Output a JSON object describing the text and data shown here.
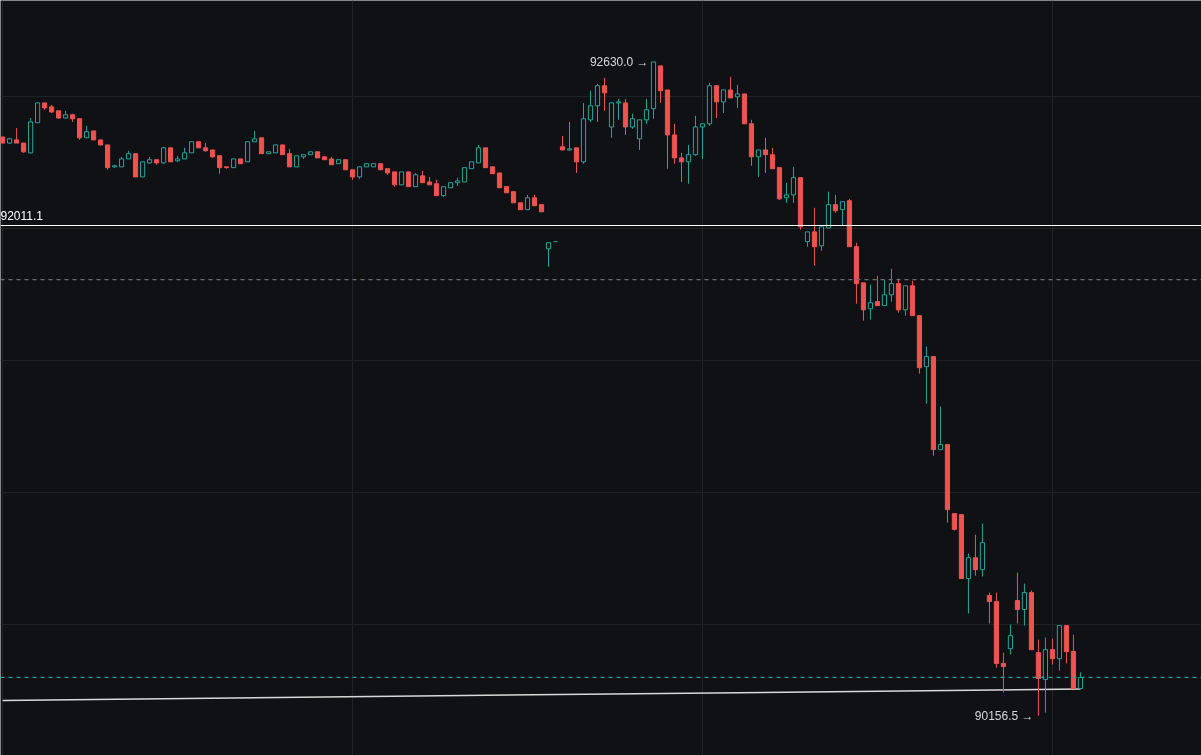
{
  "chart_data": {
    "type": "candlestick",
    "categories": [
      null,
      null,
      null,
      null,
      null,
      null,
      null,
      null,
      null,
      null,
      null,
      null,
      null,
      null,
      null,
      null,
      null,
      null,
      null,
      null,
      null,
      null,
      null,
      null,
      null,
      null,
      null,
      null,
      null,
      null,
      null,
      null,
      null,
      null,
      null,
      null,
      null,
      null,
      null,
      null,
      null,
      null,
      null,
      null,
      null,
      null,
      null,
      null,
      null,
      null,
      null,
      null,
      null,
      null,
      null,
      null,
      null,
      null,
      null,
      null,
      null,
      null,
      null,
      null,
      null,
      null,
      null,
      null,
      null,
      null,
      null,
      null,
      null,
      null,
      null,
      null,
      null,
      null,
      null,
      null,
      null,
      null,
      null,
      null,
      null,
      null,
      null,
      null,
      null,
      null,
      null,
      null,
      null,
      null,
      null,
      null,
      null,
      null,
      null,
      null,
      null,
      null,
      null,
      null,
      null,
      null,
      null,
      null,
      null,
      null,
      null,
      null,
      null,
      null,
      null,
      null,
      null,
      null,
      null,
      null,
      null,
      null,
      null,
      null,
      null,
      null,
      null,
      null,
      null,
      null,
      null,
      null,
      null,
      null,
      null,
      null,
      null,
      null,
      null,
      null,
      null,
      null,
      null,
      null,
      null,
      null,
      null,
      null,
      null,
      null,
      null,
      null,
      null,
      null,
      null
    ],
    "ohlc": [
      [
        92346,
        92346,
        92323,
        92323
      ],
      [
        92323,
        92343,
        92320,
        92339
      ],
      [
        92335,
        92380,
        92323,
        92323
      ],
      [
        92323,
        92323,
        92286,
        92290
      ],
      [
        92286,
        92418,
        92283,
        92403
      ],
      [
        92400,
        92475,
        92400,
        92475
      ],
      [
        92475,
        92475,
        92449,
        92456
      ],
      [
        92460,
        92468,
        92437,
        92441
      ],
      [
        92445,
        92445,
        92415,
        92418
      ],
      [
        92418,
        92445,
        92415,
        92430
      ],
      [
        92430,
        92434,
        92403,
        92415
      ],
      [
        92415,
        92418,
        92335,
        92343
      ],
      [
        92343,
        92388,
        92343,
        92366
      ],
      [
        92369,
        92369,
        92335,
        92335
      ],
      [
        92335,
        92335,
        92313,
        92316
      ],
      [
        92316,
        92316,
        92222,
        92230
      ],
      [
        92233,
        92241,
        92230,
        92237
      ],
      [
        92233,
        92271,
        92233,
        92263
      ],
      [
        92263,
        92294,
        92263,
        92283
      ],
      [
        92283,
        92283,
        92195,
        92195
      ],
      [
        92195,
        92252,
        92195,
        92252
      ],
      [
        92248,
        92271,
        92245,
        92260
      ],
      [
        92260,
        92260,
        92241,
        92248
      ],
      [
        92248,
        92309,
        92245,
        92305
      ],
      [
        92305,
        92305,
        92252,
        92252
      ],
      [
        92256,
        92275,
        92252,
        92263
      ],
      [
        92263,
        92305,
        92263,
        92286
      ],
      [
        92286,
        92328,
        92286,
        92328
      ],
      [
        92328,
        92331,
        92305,
        92305
      ],
      [
        92305,
        92323,
        92290,
        92294
      ],
      [
        92297,
        92297,
        92267,
        92271
      ],
      [
        92275,
        92275,
        92207,
        92230
      ],
      [
        92233,
        92233,
        92226,
        92230
      ],
      [
        92230,
        92263,
        92230,
        92263
      ],
      [
        92263,
        92263,
        92245,
        92245
      ],
      [
        92252,
        92328,
        92252,
        92328
      ],
      [
        92328,
        92369,
        92328,
        92339
      ],
      [
        92343,
        92343,
        92283,
        92283
      ],
      [
        92283,
        92290,
        92283,
        92290
      ],
      [
        92286,
        92316,
        92286,
        92316
      ],
      [
        92316,
        92316,
        92279,
        92279
      ],
      [
        92283,
        92301,
        92233,
        92233
      ],
      [
        92233,
        92275,
        92233,
        92275
      ],
      [
        92271,
        92279,
        92263,
        92279
      ],
      [
        92279,
        92290,
        92279,
        92290
      ],
      [
        92290,
        92290,
        92267,
        92267
      ],
      [
        92271,
        92271,
        92260,
        92260
      ],
      [
        92263,
        92271,
        92241,
        92241
      ],
      [
        92245,
        92260,
        92245,
        92260
      ],
      [
        92260,
        92260,
        92222,
        92222
      ],
      [
        92222,
        92222,
        92184,
        92195
      ],
      [
        92195,
        92233,
        92188,
        92233
      ],
      [
        92233,
        92248,
        92233,
        92245
      ],
      [
        92233,
        92245,
        92233,
        92245
      ],
      [
        92245,
        92245,
        92222,
        92222
      ],
      [
        92226,
        92226,
        92203,
        92210
      ],
      [
        92214,
        92214,
        92158,
        92165
      ],
      [
        92165,
        92214,
        92165,
        92214
      ],
      [
        92214,
        92214,
        92158,
        92158
      ],
      [
        92158,
        92210,
        92158,
        92203
      ],
      [
        92199,
        92218,
        92173,
        92173
      ],
      [
        92176,
        92195,
        92165,
        92165
      ],
      [
        92169,
        92184,
        92124,
        92124
      ],
      [
        92124,
        92158,
        92120,
        92158
      ],
      [
        92154,
        92173,
        92154,
        92173
      ],
      [
        92173,
        92192,
        92161,
        92180
      ],
      [
        92176,
        92230,
        92176,
        92230
      ],
      [
        92226,
        92252,
        92226,
        92252
      ],
      [
        92248,
        92316,
        92248,
        92305
      ],
      [
        92305,
        92305,
        92230,
        92230
      ],
      [
        92233,
        92233,
        92207,
        92207
      ],
      [
        92210,
        92210,
        92154,
        92154
      ],
      [
        92158,
        92158,
        92135,
        92135
      ],
      [
        92139,
        92139,
        92097,
        92097
      ],
      [
        92097,
        92097,
        92071,
        92071
      ],
      [
        92071,
        92127,
        92071,
        92116
      ],
      [
        92116,
        92127,
        92086,
        92086
      ],
      [
        92090,
        92090,
        92063,
        92063
      ],
      [
        91923,
        91946,
        91855,
        91946
      ],
      [
        91950,
        91950,
        91950,
        91950
      ],
      [
        92309,
        92350,
        92297,
        92297
      ],
      [
        92297,
        92403,
        92294,
        92301
      ],
      [
        92305,
        92305,
        92210,
        92252
      ],
      [
        92252,
        92475,
        92245,
        92415
      ],
      [
        92411,
        92521,
        92403,
        92464
      ],
      [
        92464,
        92547,
        92403,
        92540
      ],
      [
        92540,
        92570,
        92445,
        92513
      ],
      [
        92384,
        92475,
        92343,
        92475
      ],
      [
        92475,
        92490,
        92411,
        92479
      ],
      [
        92475,
        92490,
        92354,
        92384
      ],
      [
        92384,
        92434,
        92377,
        92415
      ],
      [
        92339,
        92411,
        92297,
        92411
      ],
      [
        92411,
        92490,
        92396,
        92449
      ],
      [
        92453,
        92630,
        92415,
        92630
      ],
      [
        92615,
        92615,
        92475,
        92521
      ],
      [
        92524,
        92524,
        92226,
        92354
      ],
      [
        92354,
        92396,
        92245,
        92267
      ],
      [
        92267,
        92286,
        92176,
        92252
      ],
      [
        92252,
        92316,
        92169,
        92279
      ],
      [
        92279,
        92426,
        92275,
        92384
      ],
      [
        92384,
        92396,
        92263,
        92396
      ],
      [
        92396,
        92551,
        92388,
        92540
      ],
      [
        92540,
        92540,
        92418,
        92479
      ],
      [
        92479,
        92524,
        92437,
        92524
      ],
      [
        92524,
        92574,
        92494,
        92494
      ],
      [
        92498,
        92543,
        92456,
        92509
      ],
      [
        92509,
        92509,
        92396,
        92396
      ],
      [
        92396,
        92411,
        92237,
        92271
      ],
      [
        92271,
        92297,
        92195,
        92297
      ],
      [
        92297,
        92343,
        92210,
        92279
      ],
      [
        92279,
        92305,
        92226,
        92226
      ],
      [
        92230,
        92230,
        92108,
        92112
      ],
      [
        92116,
        92173,
        92097,
        92127
      ],
      [
        92127,
        92233,
        92097,
        92192
      ],
      [
        92192,
        92192,
        91995,
        92006
      ],
      [
        91950,
        91987,
        91931,
        91987
      ],
      [
        91987,
        92078,
        91859,
        91931
      ],
      [
        91934,
        92006,
        91916,
        92006
      ],
      [
        92002,
        92139,
        92002,
        92090
      ],
      [
        92090,
        92127,
        92059,
        92067
      ],
      [
        92071,
        92101,
        92010,
        92101
      ],
      [
        92105,
        92112,
        91931,
        91931
      ],
      [
        91931,
        91946,
        91715,
        91791
      ],
      [
        91794,
        91794,
        91651,
        91692
      ],
      [
        91696,
        91787,
        91655,
        91719
      ],
      [
        91723,
        91821,
        91708,
        91708
      ],
      [
        91708,
        91806,
        91708,
        91749
      ],
      [
        91749,
        91847,
        91723,
        91791
      ],
      [
        91791,
        91810,
        91681,
        91692
      ],
      [
        91692,
        91783,
        91670,
        91783
      ],
      [
        91783,
        91802,
        91670,
        91670
      ],
      [
        91670,
        91670,
        91450,
        91473
      ],
      [
        91477,
        91553,
        91337,
        91515
      ],
      [
        91515,
        91515,
        91140,
        91163
      ],
      [
        91163,
        91326,
        91163,
        91182
      ],
      [
        91182,
        91182,
        90887,
        90936
      ],
      [
        90921,
        90921,
        90857,
        90861
      ],
      [
        90917,
        90917,
        90675,
        90675
      ],
      [
        90675,
        90770,
        90543,
        90754
      ],
      [
        90754,
        90841,
        90686,
        90709
      ],
      [
        90709,
        90883,
        90683,
        90811
      ],
      [
        90611,
        90622,
        90505,
        90588
      ],
      [
        90588,
        90622,
        90338,
        90354
      ],
      [
        90354,
        90395,
        90244,
        90342
      ],
      [
        90410,
        90501,
        90388,
        90459
      ],
      [
        90592,
        90698,
        90505,
        90558
      ],
      [
        90558,
        90656,
        90497,
        90622
      ],
      [
        90622,
        90630,
        90406,
        90406
      ],
      [
        90395,
        90444,
        90156.5,
        90297
      ],
      [
        90293,
        90452,
        90168,
        90406
      ],
      [
        90406,
        90448,
        90350,
        90372
      ],
      [
        90372,
        90497,
        90327,
        90497
      ],
      [
        90497,
        90497,
        90354,
        90399
      ],
      [
        90399,
        90463,
        90259,
        90259
      ],
      [
        90259,
        90320,
        90259,
        90301
      ]
    ],
    "colors": [
      "#ef5350",
      "#26a69a",
      "#ef5350",
      "#ef5350",
      "#26a69a",
      "#26a69a",
      "#ef5350",
      "#ef5350",
      "#ef5350",
      "#26a69a",
      "#ef5350",
      "#ef5350",
      "#26a69a",
      "#ef5350",
      "#ef5350",
      "#ef5350",
      "#26a69a",
      "#26a69a",
      "#26a69a",
      "#ef5350",
      "#26a69a",
      "#26a69a",
      "#ef5350",
      "#26a69a",
      "#ef5350",
      "#26a69a",
      "#26a69a",
      "#26a69a",
      "#ef5350",
      "#ef5350",
      "#ef5350",
      "#ef5350",
      "#ef5350",
      "#26a69a",
      "#ef5350",
      "#26a69a",
      "#26a69a",
      "#ef5350",
      "#26a69a",
      "#26a69a",
      "#ef5350",
      "#ef5350",
      "#26a69a",
      "#26a69a",
      "#26a69a",
      "#ef5350",
      "#ef5350",
      "#ef5350",
      "#26a69a",
      "#ef5350",
      "#ef5350",
      "#26a69a",
      "#26a69a",
      "#26a69a",
      "#ef5350",
      "#ef5350",
      "#ef5350",
      "#26a69a",
      "#ef5350",
      "#26a69a",
      "#ef5350",
      "#ef5350",
      "#ef5350",
      "#26a69a",
      "#26a69a",
      "#26a69a",
      "#26a69a",
      "#26a69a",
      "#26a69a",
      "#ef5350",
      "#ef5350",
      "#ef5350",
      "#ef5350",
      "#ef5350",
      "#ef5350",
      "#26a69a",
      "#ef5350",
      "#ef5350",
      "#26a69a",
      "#26a69a",
      "#ef5350",
      "#26a69a",
      "#ef5350",
      "#26a69a",
      "#26a69a",
      "#26a69a",
      "#ef5350",
      "#26a69a",
      "#26a69a",
      "#ef5350",
      "#26a69a",
      "#26a69a",
      "#26a69a",
      "#26a69a",
      "#ef5350",
      "#ef5350",
      "#ef5350",
      "#ef5350",
      "#26a69a",
      "#26a69a",
      "#26a69a",
      "#26a69a",
      "#ef5350",
      "#26a69a",
      "#ef5350",
      "#26a69a",
      "#ef5350",
      "#ef5350",
      "#26a69a",
      "#ef5350",
      "#ef5350",
      "#ef5350",
      "#26a69a",
      "#26a69a",
      "#ef5350",
      "#26a69a",
      "#ef5350",
      "#26a69a",
      "#26a69a",
      "#ef5350",
      "#26a69a",
      "#ef5350",
      "#ef5350",
      "#ef5350",
      "#26a69a",
      "#ef5350",
      "#26a69a",
      "#26a69a",
      "#ef5350",
      "#26a69a",
      "#ef5350",
      "#ef5350",
      "#26a69a",
      "#ef5350",
      "#26a69a",
      "#ef5350",
      "#ef5350",
      "#ef5350",
      "#26a69a",
      "#ef5350",
      "#26a69a",
      "#ef5350",
      "#ef5350",
      "#ef5350",
      "#26a69a",
      "#ef5350",
      "#26a69a",
      "#ef5350",
      "#ef5350",
      "#26a69a",
      "#ef5350",
      "#26a69a",
      "#ef5350",
      "#ef5350",
      "#26a69a"
    ],
    "series": [
      {
        "type": "line",
        "values": [
          90214,
          null,
          null,
          null,
          null,
          null,
          null,
          null,
          null,
          null,
          null,
          null,
          null,
          null,
          null,
          null,
          null,
          null,
          null,
          null,
          null,
          null,
          null,
          null,
          null,
          null,
          null,
          null,
          null,
          null,
          null,
          null,
          null,
          null,
          null,
          null,
          null,
          null,
          null,
          null,
          null,
          null,
          null,
          null,
          null,
          null,
          null,
          null,
          null,
          null,
          null,
          null,
          null,
          null,
          null,
          null,
          null,
          null,
          null,
          null,
          null,
          null,
          null,
          null,
          null,
          null,
          null,
          null,
          null,
          null,
          null,
          null,
          null,
          null,
          null,
          null,
          null,
          null,
          null,
          null,
          null,
          null,
          null,
          null,
          null,
          null,
          null,
          null,
          null,
          null,
          null,
          null,
          null,
          null,
          null,
          null,
          null,
          null,
          null,
          null,
          null,
          null,
          null,
          null,
          null,
          null,
          null,
          null,
          null,
          null,
          null,
          null,
          null,
          null,
          null,
          null,
          null,
          null,
          null,
          null,
          null,
          null,
          null,
          null,
          null,
          null,
          null,
          null,
          null,
          null,
          null,
          null,
          null,
          null,
          null,
          null,
          null,
          null,
          null,
          null,
          null,
          null,
          null,
          null,
          null,
          null,
          null,
          null,
          null,
          null,
          null,
          null,
          null,
          null,
          90257
        ],
        "color": "#d9d9d9"
      }
    ],
    "ref_lines": [
      {
        "axis": "y",
        "value": 92011.1,
        "label": "92011.1",
        "color": "#ffffff",
        "line_style": "solid"
      },
      {
        "axis": "y",
        "value": 91806,
        "label": null,
        "color": "#6b6f78",
        "line_style": "dashed"
      },
      {
        "axis": "y",
        "value": 90301,
        "label": null,
        "color": "#26a69a",
        "line_style": "dashed"
      }
    ],
    "annotations": [
      "92630.0 →",
      "90156.5 →"
    ],
    "grid": true
  }
}
